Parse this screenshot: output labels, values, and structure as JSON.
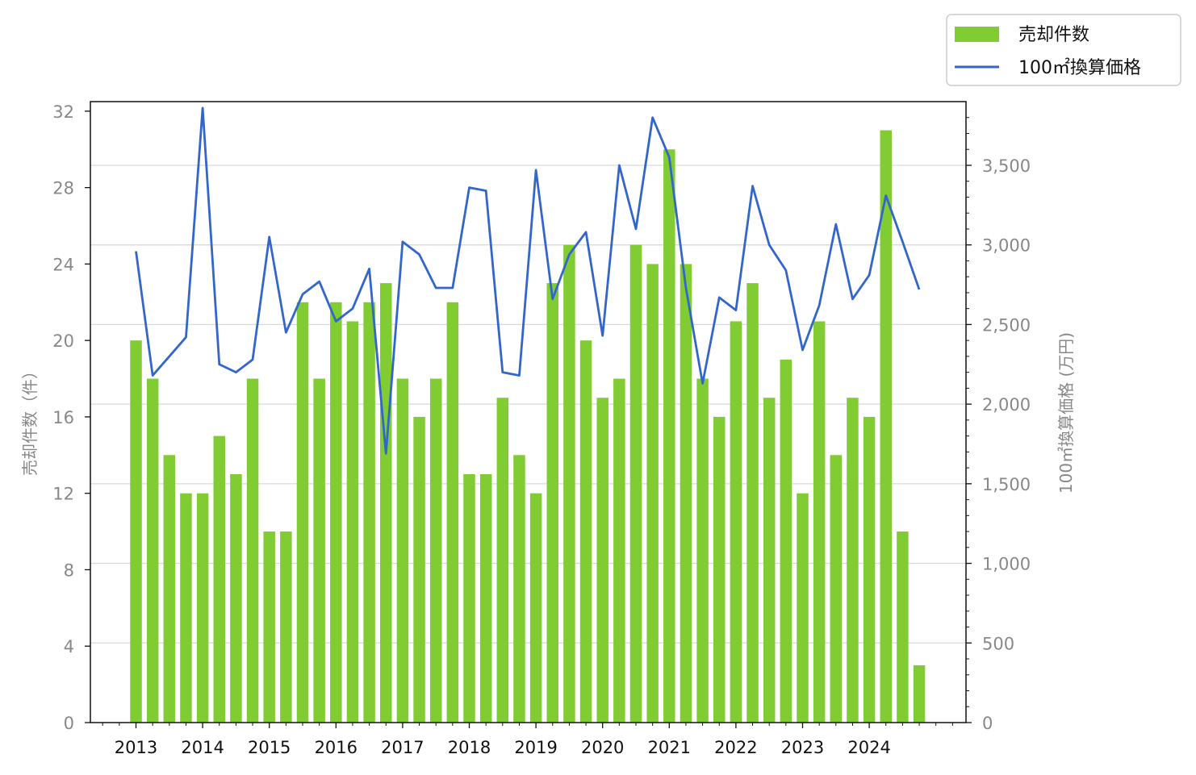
{
  "chart_data": {
    "type": "bar+line",
    "title": "",
    "x_tick_labels": [
      "2013",
      "2014",
      "2015",
      "2016",
      "2017",
      "2018",
      "2019",
      "2020",
      "2021",
      "2022",
      "2023",
      "2024"
    ],
    "xlabel": "",
    "ylabel_left": "売却件数（件）",
    "ylabel_right": "100㎡換算価格 (万円)",
    "ylim_left": [
      0,
      32.5
    ],
    "ylim_right": [
      0,
      3900
    ],
    "yticks_left": [
      "0",
      "4",
      "8",
      "12",
      "16",
      "20",
      "24",
      "28",
      "32"
    ],
    "yticks_right": [
      "0",
      "500",
      "1,000",
      "1,500",
      "2,000",
      "2,500",
      "3,000",
      "3,500"
    ],
    "grid": "horizontal, right axis",
    "legend_position": "top-right, outside plot",
    "x_start_year": 2013,
    "periods_per_year": 4,
    "series": [
      {
        "name": "売却件数",
        "type": "bar",
        "axis": "left",
        "color": "#82cc33",
        "values": [
          20,
          18,
          14,
          12,
          12,
          15,
          13,
          18,
          10,
          10,
          22,
          18,
          22,
          21,
          22,
          23,
          18,
          16,
          18,
          22,
          13,
          13,
          17,
          14,
          12,
          23,
          25,
          20,
          17,
          18,
          25,
          24,
          30,
          24,
          18,
          16,
          21,
          23,
          17,
          19,
          12,
          21,
          14,
          17,
          16,
          31,
          10,
          3
        ]
      },
      {
        "name": "100㎡換算価格",
        "type": "line",
        "axis": "right",
        "color": "#3366cc",
        "values": [
          2960,
          2180,
          2300,
          2420,
          3860,
          2250,
          2200,
          2280,
          3050,
          2450,
          2690,
          2770,
          2520,
          2600,
          2850,
          1690,
          3020,
          2940,
          2730,
          2730,
          3360,
          3340,
          2200,
          2180,
          3470,
          2660,
          2940,
          3080,
          2430,
          3500,
          3100,
          3800,
          3550,
          2730,
          2130,
          2670,
          2590,
          3370,
          3000,
          2840,
          2340,
          2620,
          3130,
          2660,
          2810,
          3310,
          3020,
          2720
        ]
      }
    ]
  }
}
